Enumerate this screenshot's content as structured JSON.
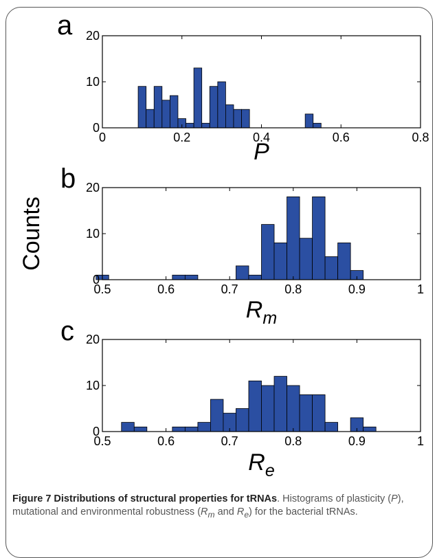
{
  "chart_data": [
    {
      "type": "bar",
      "panel_label": "a",
      "xlabel": "P",
      "xlabel_sub": "",
      "xlim": [
        0,
        0.8
      ],
      "ylim": [
        0,
        20
      ],
      "xticks": [
        "0",
        "0.2",
        "0.4",
        "0.6",
        "0.8"
      ],
      "yticks": [
        "0",
        "10",
        "20"
      ],
      "bin_width": 0.02,
      "bins": [
        {
          "x": 0.1,
          "y": 9
        },
        {
          "x": 0.12,
          "y": 4
        },
        {
          "x": 0.14,
          "y": 9
        },
        {
          "x": 0.16,
          "y": 6
        },
        {
          "x": 0.18,
          "y": 7
        },
        {
          "x": 0.2,
          "y": 2
        },
        {
          "x": 0.22,
          "y": 1
        },
        {
          "x": 0.24,
          "y": 13
        },
        {
          "x": 0.26,
          "y": 1
        },
        {
          "x": 0.28,
          "y": 9
        },
        {
          "x": 0.3,
          "y": 10
        },
        {
          "x": 0.32,
          "y": 5
        },
        {
          "x": 0.34,
          "y": 4
        },
        {
          "x": 0.36,
          "y": 4
        },
        {
          "x": 0.52,
          "y": 3
        },
        {
          "x": 0.54,
          "y": 1
        }
      ]
    },
    {
      "type": "bar",
      "panel_label": "b",
      "xlabel": "R",
      "xlabel_sub": "m",
      "xlim": [
        0.5,
        1
      ],
      "ylim": [
        0,
        20
      ],
      "xticks": [
        "0.5",
        "0.6",
        "0.7",
        "0.8",
        "0.9",
        "1"
      ],
      "yticks": [
        "0",
        "10",
        "20"
      ],
      "bin_width": 0.02,
      "bins": [
        {
          "x": 0.5,
          "y": 1
        },
        {
          "x": 0.62,
          "y": 1
        },
        {
          "x": 0.64,
          "y": 1
        },
        {
          "x": 0.72,
          "y": 3
        },
        {
          "x": 0.74,
          "y": 1
        },
        {
          "x": 0.76,
          "y": 12
        },
        {
          "x": 0.78,
          "y": 8
        },
        {
          "x": 0.8,
          "y": 18
        },
        {
          "x": 0.82,
          "y": 9
        },
        {
          "x": 0.84,
          "y": 18
        },
        {
          "x": 0.86,
          "y": 5
        },
        {
          "x": 0.88,
          "y": 8
        },
        {
          "x": 0.9,
          "y": 2
        }
      ]
    },
    {
      "type": "bar",
      "panel_label": "c",
      "xlabel": "R",
      "xlabel_sub": "e",
      "xlim": [
        0.5,
        1
      ],
      "ylim": [
        0,
        20
      ],
      "xticks": [
        "0.5",
        "0.6",
        "0.7",
        "0.8",
        "0.9",
        "1"
      ],
      "yticks": [
        "0",
        "10",
        "20"
      ],
      "bin_width": 0.02,
      "bins": [
        {
          "x": 0.54,
          "y": 2
        },
        {
          "x": 0.56,
          "y": 1
        },
        {
          "x": 0.62,
          "y": 1
        },
        {
          "x": 0.64,
          "y": 1
        },
        {
          "x": 0.66,
          "y": 2
        },
        {
          "x": 0.68,
          "y": 7
        },
        {
          "x": 0.7,
          "y": 4
        },
        {
          "x": 0.72,
          "y": 5
        },
        {
          "x": 0.74,
          "y": 11
        },
        {
          "x": 0.76,
          "y": 10
        },
        {
          "x": 0.78,
          "y": 12
        },
        {
          "x": 0.8,
          "y": 10
        },
        {
          "x": 0.82,
          "y": 8
        },
        {
          "x": 0.84,
          "y": 8
        },
        {
          "x": 0.86,
          "y": 2
        },
        {
          "x": 0.9,
          "y": 3
        },
        {
          "x": 0.92,
          "y": 1
        }
      ]
    }
  ],
  "shared_ylabel": "Counts",
  "bar_color": "#2b4fa2",
  "caption": {
    "title": "Figure 7 Distributions of structural properties for tRNAs",
    "title_end": ".",
    "line1": "Histograms of plasticity (",
    "p": "P",
    "line2": "), mutational and environmental robustness (",
    "rm_base": "R",
    "rm_sub": "m",
    "and": " and ",
    "re_base": "R",
    "re_sub": "e",
    "line3": ") for the bacterial tRNAs."
  }
}
